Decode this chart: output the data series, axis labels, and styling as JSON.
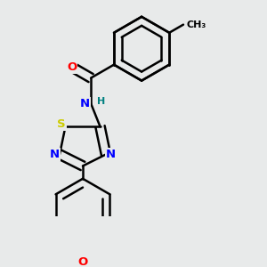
{
  "background_color": "#e8eaea",
  "bond_color": "#000000",
  "bond_width": 1.8,
  "atom_colors": {
    "N": "#0000ff",
    "O": "#ff0000",
    "S": "#cccc00",
    "H": "#008080",
    "C": "#000000"
  },
  "font_size": 9.5,
  "dbo": 0.018
}
